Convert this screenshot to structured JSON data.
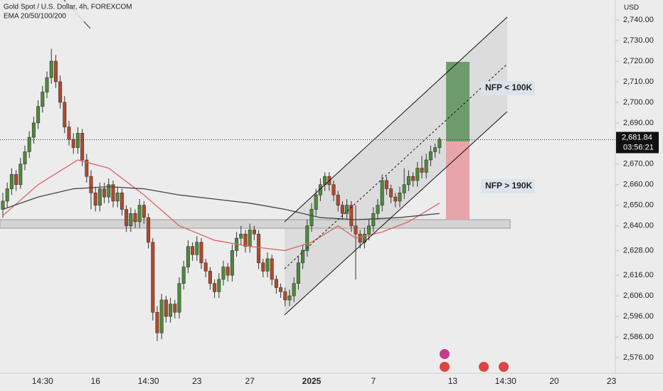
{
  "chart_data": {
    "type": "candlestick",
    "title": "Gold Spot / U.S. Dollar, 4h, FOREXCOM",
    "subtitle": "EMA 20/50/100/200",
    "y_unit": "USD",
    "up_color": "#4f8a3a",
    "down_color": "#b5482a",
    "ylim": [
      2568.4,
      2749.7
    ],
    "yticks": [
      {
        "value": 2740,
        "label": "2,740.00"
      },
      {
        "value": 2730,
        "label": "2,730.00"
      },
      {
        "value": 2720,
        "label": "2,720.00"
      },
      {
        "value": 2710,
        "label": "2,710.00"
      },
      {
        "value": 2700,
        "label": "2,700.00"
      },
      {
        "value": 2690,
        "label": "2,690.00"
      },
      {
        "value": 2670,
        "label": "2,670.00"
      },
      {
        "value": 2660,
        "label": "2,660.00"
      },
      {
        "value": 2650,
        "label": "2,650.00"
      },
      {
        "value": 2640,
        "label": "2,640.00"
      },
      {
        "value": 2628,
        "label": "2,628.00"
      },
      {
        "value": 2616,
        "label": "2,616.00"
      },
      {
        "value": 2606,
        "label": "2,606.00"
      },
      {
        "value": 2596,
        "label": "2,596.00"
      },
      {
        "value": 2586,
        "label": "2,586.00"
      },
      {
        "value": 2576,
        "label": "2,576.00"
      }
    ],
    "grid": false,
    "last_price": {
      "value": 2681.84,
      "label": "2,681.84"
    },
    "countdown": "03:56:21",
    "annotations": [
      "NFP < 100K",
      "NFP > 190K"
    ],
    "categories": [
      null,
      null,
      null,
      null,
      null,
      null,
      null,
      null,
      null,
      "14:30",
      null,
      null,
      null,
      null,
      null,
      null,
      null,
      null,
      null,
      null,
      null,
      "16",
      null,
      null,
      null,
      null,
      null,
      null,
      null,
      null,
      null,
      null,
      null,
      "14:30",
      null,
      null,
      null,
      null,
      null,
      null,
      null,
      null,
      null,
      null,
      "23",
      null,
      null,
      null,
      null,
      null,
      null,
      null,
      null,
      null,
      null,
      null,
      "27",
      null,
      null,
      null,
      null,
      null,
      null,
      null,
      null,
      null,
      null,
      null,
      null,
      null,
      "2025",
      null,
      null,
      null,
      null,
      null,
      null,
      null,
      null,
      null,
      null,
      null,
      null,
      null,
      "7",
      null,
      null,
      null,
      null,
      null,
      null,
      null,
      null,
      null,
      null,
      null,
      null,
      null,
      null,
      null,
      null,
      null,
      "13",
      null,
      null,
      null,
      null,
      null,
      null,
      null,
      null,
      null,
      null,
      null,
      "14:30",
      null,
      null,
      null,
      null,
      null,
      null,
      null,
      null,
      null,
      null,
      "20",
      null,
      null,
      null,
      null,
      null,
      null,
      null,
      null,
      null,
      null,
      null,
      null,
      "23",
      null
    ],
    "ohlc": [
      [
        2648,
        2656,
        2644,
        2652
      ],
      [
        2652,
        2661,
        2649,
        2658
      ],
      [
        2658,
        2668,
        2655,
        2665
      ],
      [
        2665,
        2667,
        2657,
        2660
      ],
      [
        2660,
        2673,
        2658,
        2670
      ],
      [
        2670,
        2679,
        2667,
        2676
      ],
      [
        2676,
        2686,
        2673,
        2683
      ],
      [
        2683,
        2693,
        2680,
        2690
      ],
      [
        2690,
        2701,
        2687,
        2698
      ],
      [
        2698,
        2708,
        2695,
        2705
      ],
      [
        2705,
        2715,
        2702,
        2712
      ],
      [
        2712,
        2726,
        2709,
        2720
      ],
      [
        2720,
        2723,
        2707,
        2710
      ],
      [
        2710,
        2713,
        2697,
        2700
      ],
      [
        2700,
        2703,
        2685,
        2688
      ],
      [
        2688,
        2691,
        2679,
        2682
      ],
      [
        2682,
        2685,
        2675,
        2678
      ],
      [
        2678,
        2688,
        2675,
        2685
      ],
      [
        2685,
        2687,
        2669,
        2672
      ],
      [
        2672,
        2675,
        2661,
        2664
      ],
      [
        2664,
        2667,
        2648,
        2656
      ],
      [
        2656,
        2659,
        2647,
        2650
      ],
      [
        2650,
        2661,
        2647,
        2658
      ],
      [
        2658,
        2661,
        2651,
        2654
      ],
      [
        2654,
        2663,
        2651,
        2660
      ],
      [
        2660,
        2662,
        2649,
        2652
      ],
      [
        2652,
        2659,
        2649,
        2656
      ],
      [
        2656,
        2658,
        2645,
        2648
      ],
      [
        2648,
        2650,
        2637,
        2640
      ],
      [
        2640,
        2649,
        2637,
        2646
      ],
      [
        2646,
        2648,
        2639,
        2642
      ],
      [
        2642,
        2653,
        2639,
        2650
      ],
      [
        2650,
        2652,
        2641,
        2644
      ],
      [
        2644,
        2646,
        2629,
        2632
      ],
      [
        2632,
        2634,
        2594,
        2598
      ],
      [
        2598,
        2601,
        2584,
        2588
      ],
      [
        2588,
        2607,
        2585,
        2604
      ],
      [
        2604,
        2606,
        2593,
        2596
      ],
      [
        2596,
        2605,
        2593,
        2602
      ],
      [
        2602,
        2604,
        2595,
        2598
      ],
      [
        2598,
        2615,
        2595,
        2612
      ],
      [
        2612,
        2623,
        2609,
        2620
      ],
      [
        2620,
        2633,
        2617,
        2630
      ],
      [
        2630,
        2632,
        2623,
        2626
      ],
      [
        2626,
        2635,
        2623,
        2632
      ],
      [
        2632,
        2634,
        2619,
        2622
      ],
      [
        2622,
        2624,
        2615,
        2618
      ],
      [
        2618,
        2620,
        2609,
        2612
      ],
      [
        2612,
        2614,
        2605,
        2608
      ],
      [
        2608,
        2617,
        2605,
        2614
      ],
      [
        2614,
        2623,
        2611,
        2620
      ],
      [
        2620,
        2622,
        2613,
        2616
      ],
      [
        2616,
        2631,
        2613,
        2628
      ],
      [
        2628,
        2637,
        2625,
        2634
      ],
      [
        2634,
        2640,
        2631,
        2636
      ],
      [
        2636,
        2638,
        2627,
        2630
      ],
      [
        2630,
        2641,
        2627,
        2638
      ],
      [
        2638,
        2640,
        2633,
        2636
      ],
      [
        2636,
        2638,
        2619,
        2622
      ],
      [
        2622,
        2624,
        2615,
        2618
      ],
      [
        2618,
        2627,
        2615,
        2624
      ],
      [
        2624,
        2626,
        2611,
        2614
      ],
      [
        2614,
        2616,
        2607,
        2610
      ],
      [
        2610,
        2612,
        2605,
        2608
      ],
      [
        2608,
        2610,
        2601,
        2604
      ],
      [
        2604,
        2609,
        2601,
        2606
      ],
      [
        2606,
        2615,
        2603,
        2612
      ],
      [
        2612,
        2625,
        2609,
        2622
      ],
      [
        2622,
        2631,
        2619,
        2628
      ],
      [
        2628,
        2643,
        2625,
        2640
      ],
      [
        2640,
        2651,
        2637,
        2648
      ],
      [
        2648,
        2658,
        2645,
        2655
      ],
      [
        2655,
        2663,
        2652,
        2660
      ],
      [
        2660,
        2666,
        2657,
        2664
      ],
      [
        2664,
        2666,
        2657,
        2660
      ],
      [
        2660,
        2662,
        2652,
        2655
      ],
      [
        2655,
        2657,
        2647,
        2650
      ],
      [
        2650,
        2652,
        2643,
        2646
      ],
      [
        2646,
        2653,
        2643,
        2650
      ],
      [
        2650,
        2652,
        2637,
        2640
      ],
      [
        2640,
        2650,
        2614,
        2636
      ],
      [
        2636,
        2638,
        2629,
        2632
      ],
      [
        2632,
        2639,
        2629,
        2636
      ],
      [
        2636,
        2643,
        2633,
        2640
      ],
      [
        2640,
        2649,
        2637,
        2646
      ],
      [
        2646,
        2653,
        2643,
        2650
      ],
      [
        2650,
        2665,
        2647,
        2662
      ],
      [
        2662,
        2664,
        2655,
        2658
      ],
      [
        2658,
        2660,
        2651,
        2654
      ],
      [
        2654,
        2656,
        2649,
        2652
      ],
      [
        2652,
        2659,
        2649,
        2656
      ],
      [
        2656,
        2668,
        2653,
        2660
      ],
      [
        2660,
        2667,
        2657,
        2664
      ],
      [
        2664,
        2666,
        2659,
        2662
      ],
      [
        2662,
        2671,
        2659,
        2668
      ],
      [
        2668,
        2674,
        2663,
        2666
      ],
      [
        2666,
        2675,
        2663,
        2672
      ],
      [
        2672,
        2679,
        2669,
        2676
      ],
      [
        2676,
        2680,
        2673,
        2678
      ],
      [
        2678,
        2683,
        2675,
        2682
      ],
      null,
      null,
      null,
      null,
      null,
      null,
      null,
      null,
      null,
      null,
      null,
      null,
      null,
      null,
      null,
      null,
      null,
      null,
      null,
      null,
      null,
      null,
      null,
      null,
      null,
      null,
      null,
      null,
      null,
      null,
      null,
      null,
      null,
      null,
      null,
      null,
      null,
      null,
      null,
      null
    ],
    "lines": [
      {
        "color": "#d9646a",
        "x": [
          0,
          8,
          17,
          24,
          32,
          40,
          48,
          56,
          64,
          70,
          76,
          80,
          86,
          92,
          99
        ],
        "values": [
          2645,
          2660,
          2672,
          2668,
          2655,
          2640,
          2633,
          2630,
          2628,
          2632,
          2640,
          2634,
          2637,
          2642,
          2651
        ]
      },
      {
        "color": "#444444",
        "x": [
          0,
          8,
          16,
          24,
          32,
          40,
          48,
          56,
          64,
          72,
          80,
          90,
          99
        ],
        "values": [
          2648,
          2654,
          2658,
          2659,
          2658,
          2655,
          2653,
          2651,
          2648,
          2644,
          2643,
          2644,
          2646
        ]
      }
    ]
  }
}
